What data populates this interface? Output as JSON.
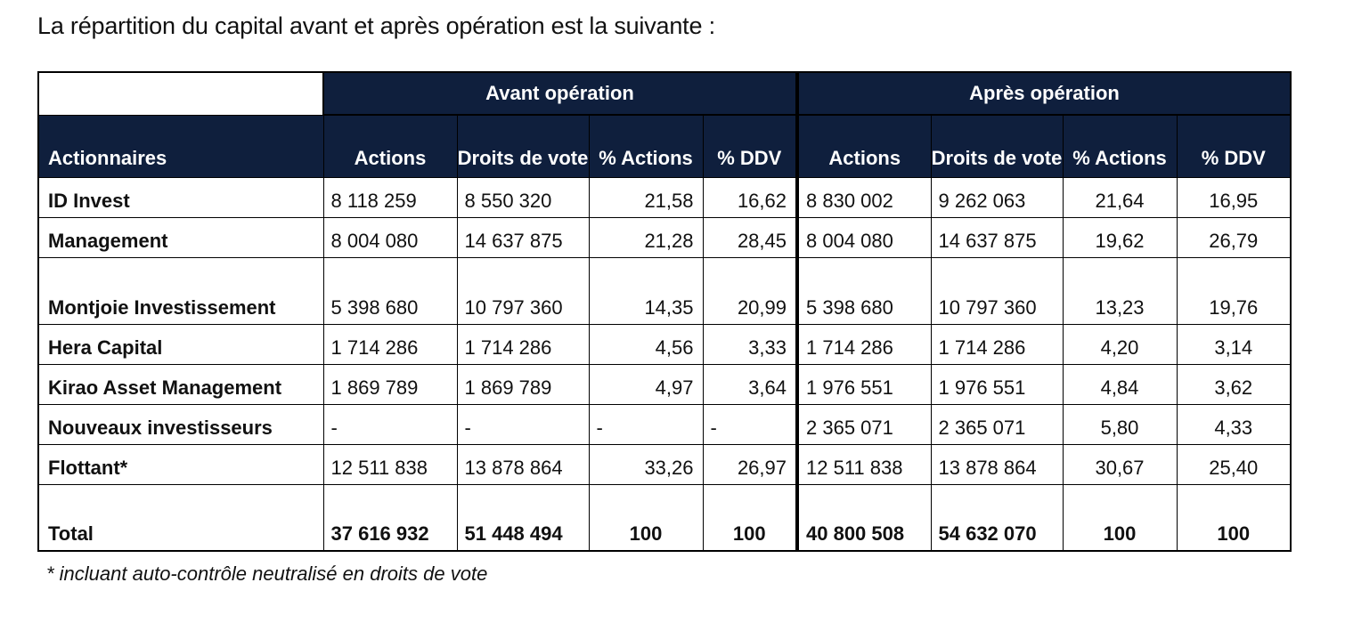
{
  "intro": "La répartition du capital avant et après opération est la suivante :",
  "groups": {
    "before": "Avant opération",
    "after": "Après opération"
  },
  "headers": [
    "Actionnaires",
    "Actions",
    "Droits de vote",
    "% Actions",
    "% DDV",
    "Actions",
    "Droits de vote",
    "% Actions",
    "% DDV"
  ],
  "rows": [
    {
      "name": "ID Invest",
      "avant": [
        "8 118 259",
        "8 550 320",
        "21,58",
        "16,62"
      ],
      "apres": [
        "8 830 002",
        "9 262 063",
        "21,64",
        "16,95"
      ]
    },
    {
      "name": "Management",
      "avant": [
        "8 004 080",
        "14 637 875",
        "21,28",
        "28,45"
      ],
      "apres": [
        "8 004 080",
        "14 637 875",
        "19,62",
        "26,79"
      ]
    },
    {
      "name": "Montjoie Investissement",
      "avant": [
        "5 398 680",
        "10 797 360",
        "14,35",
        "20,99"
      ],
      "apres": [
        "5 398 680",
        "10 797 360",
        "13,23",
        "19,76"
      ]
    },
    {
      "name": "Hera Capital",
      "avant": [
        "1 714 286",
        "1 714 286",
        "4,56",
        "3,33"
      ],
      "apres": [
        "1 714 286",
        "1 714 286",
        "4,20",
        "3,14"
      ]
    },
    {
      "name": "Kirao Asset Management",
      "avant": [
        "1 869 789",
        "1 869 789",
        "4,97",
        "3,64"
      ],
      "apres": [
        "1 976 551",
        "1 976 551",
        "4,84",
        "3,62"
      ]
    },
    {
      "name": "Nouveaux investisseurs",
      "avant": [
        "-",
        "-",
        "-",
        "-"
      ],
      "apres": [
        "2 365 071",
        "2 365 071",
        "5,80",
        "4,33"
      ]
    },
    {
      "name": "Flottant*",
      "avant": [
        "12 511 838",
        "13 878 864",
        "33,26",
        "26,97"
      ],
      "apres": [
        "12 511 838",
        "13 878 864",
        "30,67",
        "25,40"
      ]
    },
    {
      "name": "Total",
      "avant": [
        "37 616 932",
        "51 448 494",
        "100",
        "100"
      ],
      "apres": [
        "40 800 508",
        "54 632 070",
        "100",
        "100"
      ]
    }
  ],
  "footnote": "* incluant auto-contrôle neutralisé en droits de vote"
}
